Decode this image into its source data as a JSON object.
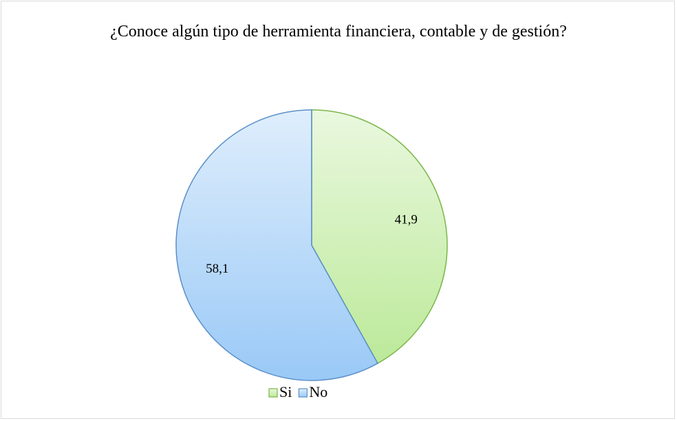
{
  "chart_data": {
    "type": "pie",
    "title": "¿Conoce algún tipo de herramienta financiera, contable y de gestión?",
    "categories": [
      "Si",
      "No"
    ],
    "values": [
      41.9,
      58.1
    ],
    "value_labels": [
      "41,9",
      "58,1"
    ],
    "colors": [
      "#b8e894",
      "#94c6f6"
    ],
    "edgecolors": [
      "#7ab648",
      "#5a8fc8"
    ],
    "legend": "bottom"
  }
}
